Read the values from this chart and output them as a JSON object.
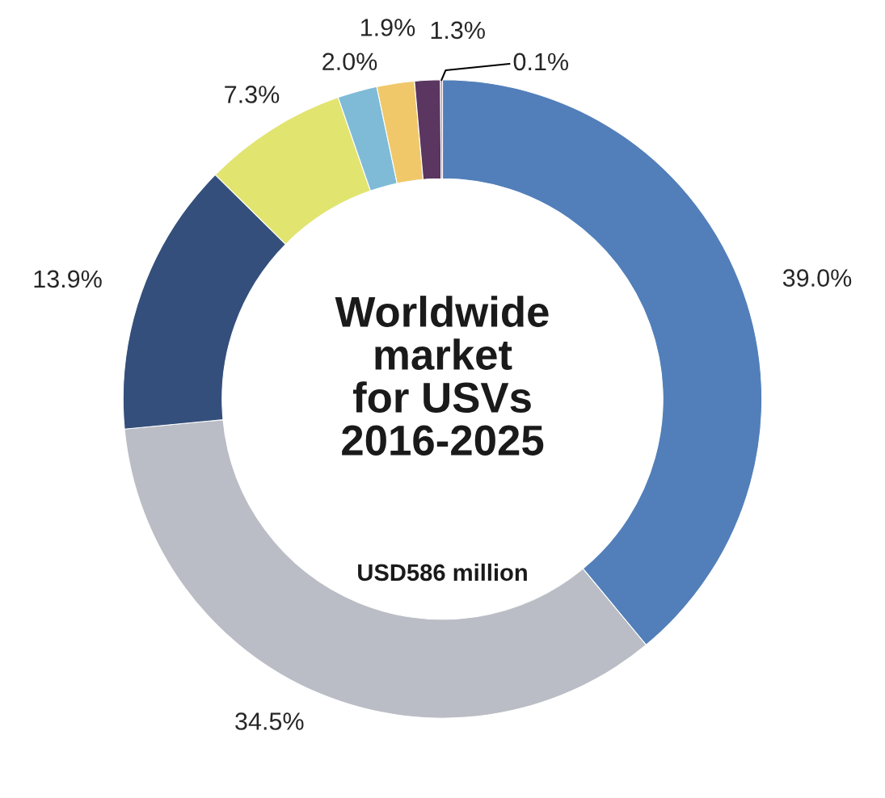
{
  "chart_data": {
    "type": "donut",
    "title": "Worldwide\nmarket\nfor USVs\n2016-2025",
    "subtitle": "USD586 million",
    "categories": [
      null,
      null,
      null,
      null,
      null,
      null,
      null,
      null
    ],
    "values": [
      39.0,
      34.5,
      13.9,
      7.3,
      2.0,
      1.9,
      1.3,
      0.1
    ],
    "value_labels": [
      "39.0%",
      "34.5%",
      "13.9%",
      "7.3%",
      "2.0%",
      "1.9%",
      "1.3%",
      "0.1%"
    ],
    "colors": [
      "#527fb9",
      "#babdc5",
      "#344f7b",
      "#e1e46f",
      "#7fbbd6",
      "#f0c86a",
      "#5a3660",
      "#c98a8a"
    ]
  }
}
